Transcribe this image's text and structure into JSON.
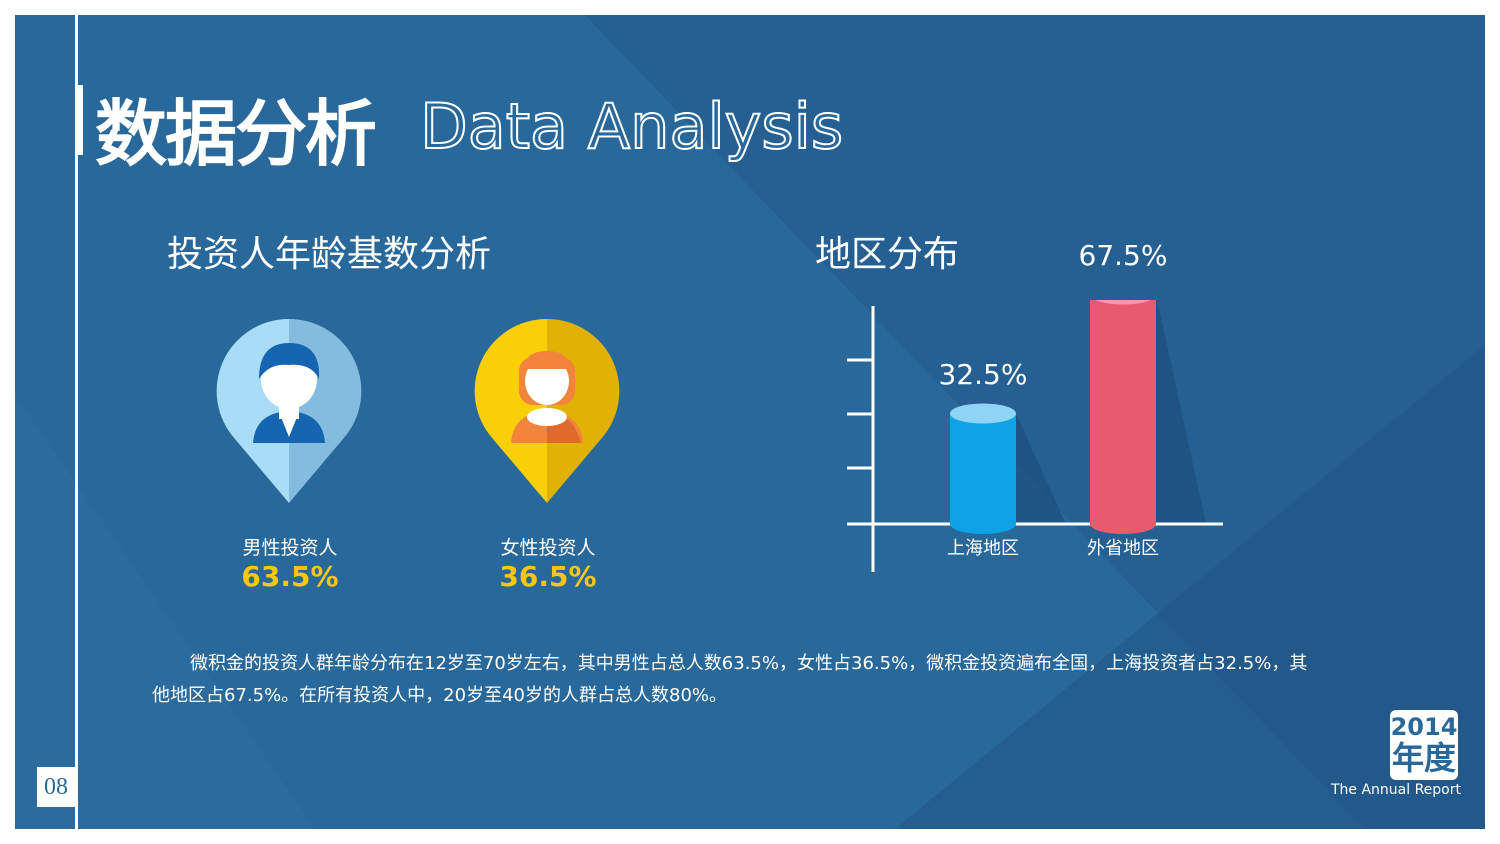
{
  "page_number": "08",
  "header": {
    "title_cn": "数据分析",
    "title_en": "Data Analysis"
  },
  "age_section": {
    "title": "投资人年龄基数分析",
    "male": {
      "label": "男性投资人",
      "value": "63.5%",
      "color": "#9fd4ef",
      "icon": "male-investor-pin-icon"
    },
    "female": {
      "label": "女性投资人",
      "value": "36.5%",
      "color": "#f6c70a",
      "icon": "female-investor-pin-icon"
    }
  },
  "region_section": {
    "title": "地区分布",
    "chart_data": {
      "type": "bar",
      "categories": [
        "上海地区",
        "外省地区"
      ],
      "values": [
        32.5,
        67.5
      ],
      "value_labels": [
        "32.5%",
        "67.5%"
      ],
      "colors": [
        "#0ea2e6",
        "#e85a6d"
      ],
      "ylim": [
        0,
        100
      ],
      "grid": false
    }
  },
  "description": "微积金的投资人群年龄分布在12岁至70岁左右，其中男性占总人数63.5%，女性占36.5%，微积金投资遍布全国，上海投资者占32.5%，其他地区占67.5%。在所有投资人中，20岁至40岁的人群占总人数80%。",
  "badge": {
    "year": "2014",
    "label": "年度",
    "subtitle": "The Annual Report"
  }
}
